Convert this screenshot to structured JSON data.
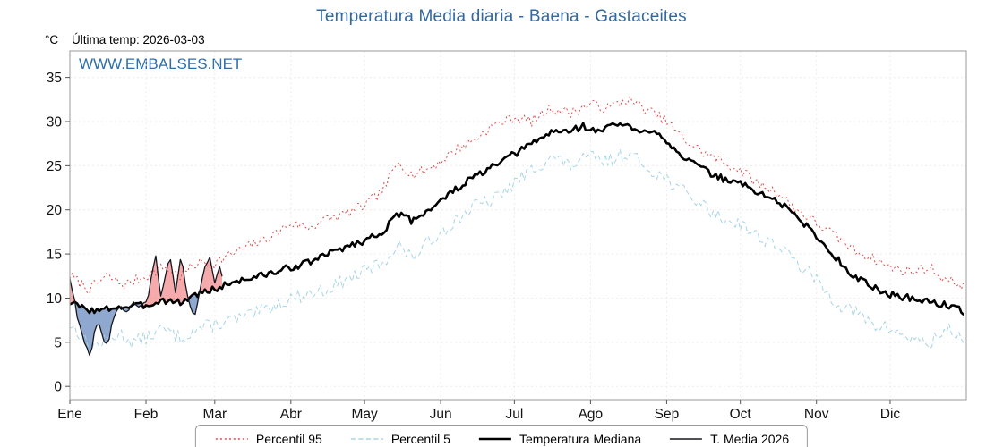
{
  "header": {
    "last_temp_label": "Última temp: 2026-03-03",
    "watermark": "WWW.EMBALSES.NET"
  },
  "colors": {
    "title": "#33699e",
    "watermark": "#2d6fad",
    "axis": "#a9a9a9",
    "grid": "#ececec",
    "tick_text": "#111111"
  },
  "chart_data": {
    "type": "line",
    "title": "Temperatura Media diaria - Baena - Gastaceites",
    "ylabel": "°C",
    "xlabel": "",
    "ylim": [
      0,
      35
    ],
    "yticks": [
      0,
      5,
      10,
      15,
      20,
      25,
      30,
      35
    ],
    "x_categories": [
      "Ene",
      "Feb",
      "Mar",
      "Abr",
      "May",
      "Jun",
      "Jul",
      "Ago",
      "Sep",
      "Oct",
      "Nov",
      "Dic"
    ],
    "month_start_days": [
      0,
      31,
      59,
      90,
      120,
      151,
      181,
      212,
      243,
      273,
      304,
      334
    ],
    "grid": true,
    "legend_position": "bottom",
    "fill_above": "rgba(238,115,115,0.6)",
    "fill_below": "rgba(82,122,182,0.65)",
    "series": [
      {
        "name": "Percentil 95",
        "color": "#e04b4b",
        "dash": "2 3",
        "width": 1,
        "noise": 0.6,
        "seed": 7,
        "points": [
          [
            0,
            12.5
          ],
          [
            8,
            11
          ],
          [
            15,
            12.5
          ],
          [
            22,
            11.5
          ],
          [
            31,
            12.5
          ],
          [
            38,
            13.5
          ],
          [
            45,
            12.5
          ],
          [
            52,
            14
          ],
          [
            59,
            14
          ],
          [
            66,
            15
          ],
          [
            74,
            16
          ],
          [
            82,
            17
          ],
          [
            90,
            18.5
          ],
          [
            97,
            18
          ],
          [
            105,
            19
          ],
          [
            112,
            19.5
          ],
          [
            120,
            20.5
          ],
          [
            127,
            22
          ],
          [
            134,
            25.5
          ],
          [
            139,
            24
          ],
          [
            145,
            24.5
          ],
          [
            151,
            25.5
          ],
          [
            158,
            27
          ],
          [
            165,
            28
          ],
          [
            172,
            29.5
          ],
          [
            181,
            30.5
          ],
          [
            188,
            30
          ],
          [
            196,
            31.5
          ],
          [
            204,
            31
          ],
          [
            212,
            32
          ],
          [
            219,
            31.5
          ],
          [
            227,
            32.5
          ],
          [
            234,
            31.5
          ],
          [
            243,
            30
          ],
          [
            250,
            28
          ],
          [
            258,
            26.5
          ],
          [
            265,
            25.5
          ],
          [
            273,
            24.5
          ],
          [
            280,
            23
          ],
          [
            288,
            22
          ],
          [
            296,
            20
          ],
          [
            304,
            18.5
          ],
          [
            312,
            17
          ],
          [
            319,
            15.5
          ],
          [
            327,
            14.5
          ],
          [
            334,
            13.5
          ],
          [
            342,
            13
          ],
          [
            350,
            13.5
          ],
          [
            357,
            12
          ],
          [
            364,
            11.5
          ]
        ]
      },
      {
        "name": "Percentil 5",
        "color": "#a5d5e6",
        "dash": "5 3.5",
        "width": 1,
        "noise": 0.8,
        "seed": 13,
        "points": [
          [
            0,
            7
          ],
          [
            4,
            6
          ],
          [
            8,
            4.5
          ],
          [
            14,
            5
          ],
          [
            20,
            6
          ],
          [
            26,
            5
          ],
          [
            31,
            5.5
          ],
          [
            38,
            6.5
          ],
          [
            45,
            5.5
          ],
          [
            52,
            6.5
          ],
          [
            59,
            7
          ],
          [
            66,
            7.5
          ],
          [
            74,
            8
          ],
          [
            82,
            9
          ],
          [
            90,
            10
          ],
          [
            97,
            10.5
          ],
          [
            105,
            11
          ],
          [
            112,
            12
          ],
          [
            120,
            13
          ],
          [
            127,
            14
          ],
          [
            134,
            16
          ],
          [
            139,
            14.5
          ],
          [
            145,
            16
          ],
          [
            151,
            17.5
          ],
          [
            158,
            19
          ],
          [
            165,
            20.5
          ],
          [
            172,
            21
          ],
          [
            181,
            23
          ],
          [
            188,
            24.5
          ],
          [
            196,
            26
          ],
          [
            204,
            25
          ],
          [
            212,
            26
          ],
          [
            219,
            25.5
          ],
          [
            227,
            26.5
          ],
          [
            234,
            25
          ],
          [
            243,
            23.5
          ],
          [
            250,
            22
          ],
          [
            258,
            20.5
          ],
          [
            265,
            19
          ],
          [
            273,
            18.5
          ],
          [
            280,
            17
          ],
          [
            288,
            16
          ],
          [
            296,
            14
          ],
          [
            304,
            12
          ],
          [
            312,
            9.5
          ],
          [
            319,
            8.5
          ],
          [
            327,
            7
          ],
          [
            334,
            6.5
          ],
          [
            342,
            5.5
          ],
          [
            350,
            4.8
          ],
          [
            357,
            6.5
          ],
          [
            364,
            5.5
          ]
        ]
      },
      {
        "name": "Temperatura Mediana",
        "color": "#000000",
        "dash": "",
        "width": 2.6,
        "noise": 0.4,
        "seed": 3,
        "points": [
          [
            0,
            9.5
          ],
          [
            6,
            8.8
          ],
          [
            12,
            8.5
          ],
          [
            18,
            9
          ],
          [
            24,
            9
          ],
          [
            31,
            9.2
          ],
          [
            38,
            9.8
          ],
          [
            45,
            9.5
          ],
          [
            52,
            10.5
          ],
          [
            59,
            11
          ],
          [
            66,
            11.8
          ],
          [
            74,
            12.3
          ],
          [
            82,
            12.8
          ],
          [
            90,
            13.5
          ],
          [
            97,
            14
          ],
          [
            105,
            15
          ],
          [
            112,
            15.8
          ],
          [
            120,
            16.5
          ],
          [
            127,
            17.5
          ],
          [
            134,
            19.5
          ],
          [
            139,
            18.8
          ],
          [
            145,
            19.8
          ],
          [
            151,
            21
          ],
          [
            158,
            22.5
          ],
          [
            165,
            23.8
          ],
          [
            172,
            24.8
          ],
          [
            181,
            26.3
          ],
          [
            188,
            27.5
          ],
          [
            196,
            28.8
          ],
          [
            204,
            29
          ],
          [
            209,
            29.5
          ],
          [
            215,
            28.8
          ],
          [
            222,
            29.8
          ],
          [
            227,
            29.5
          ],
          [
            232,
            28.6
          ],
          [
            238,
            29.2
          ],
          [
            243,
            27.8
          ],
          [
            250,
            26
          ],
          [
            258,
            24.5
          ],
          [
            265,
            23.6
          ],
          [
            273,
            23
          ],
          [
            280,
            22
          ],
          [
            288,
            21
          ],
          [
            296,
            19.3
          ],
          [
            304,
            17
          ],
          [
            312,
            14.5
          ],
          [
            319,
            12.6
          ],
          [
            327,
            11.2
          ],
          [
            334,
            10.4
          ],
          [
            342,
            10
          ],
          [
            350,
            9.6
          ],
          [
            357,
            9.2
          ],
          [
            364,
            8.5
          ]
        ]
      },
      {
        "name": "T. Media 2026",
        "color": "#16161f",
        "dash": "",
        "width": 1.3,
        "noise": 0.2,
        "seed": 9,
        "points": [
          [
            0,
            12.3
          ],
          [
            1,
            11
          ],
          [
            2,
            9.5
          ],
          [
            3,
            8
          ],
          [
            4,
            7
          ],
          [
            5,
            6
          ],
          [
            6,
            5
          ],
          [
            7,
            4.2
          ],
          [
            8,
            3.7
          ],
          [
            9,
            4.5
          ],
          [
            10,
            6
          ],
          [
            11,
            6.8
          ],
          [
            12,
            7
          ],
          [
            13,
            6
          ],
          [
            14,
            5.2
          ],
          [
            15,
            4.8
          ],
          [
            16,
            5.5
          ],
          [
            17,
            7
          ],
          [
            18,
            8
          ],
          [
            19,
            8.5
          ],
          [
            20,
            8.8
          ],
          [
            21,
            9
          ],
          [
            22,
            8.6
          ],
          [
            23,
            8.3
          ],
          [
            24,
            8.8
          ],
          [
            25,
            9.3
          ],
          [
            26,
            9.6
          ],
          [
            27,
            9.2
          ],
          [
            28,
            8.9
          ],
          [
            29,
            9.1
          ],
          [
            30,
            9.4
          ],
          [
            31,
            9.6
          ],
          [
            32,
            10.5
          ],
          [
            33,
            12
          ],
          [
            34,
            13.5
          ],
          [
            35,
            14.6
          ],
          [
            36,
            12.5
          ],
          [
            37,
            10.2
          ],
          [
            38,
            11.5
          ],
          [
            39,
            12.5
          ],
          [
            40,
            13.8
          ],
          [
            41,
            14.5
          ],
          [
            42,
            12.5
          ],
          [
            43,
            10.5
          ],
          [
            44,
            12.5
          ],
          [
            45,
            14.5
          ],
          [
            46,
            13.5
          ],
          [
            47,
            11.8
          ],
          [
            48,
            10
          ],
          [
            49,
            9
          ],
          [
            50,
            8.2
          ],
          [
            51,
            8
          ],
          [
            52,
            9.5
          ],
          [
            53,
            11
          ],
          [
            54,
            12.5
          ],
          [
            55,
            13.6
          ],
          [
            56,
            14.2
          ],
          [
            57,
            14.6
          ],
          [
            58,
            13
          ],
          [
            59,
            11.8
          ],
          [
            60,
            12.5
          ],
          [
            61,
            13.4
          ],
          [
            62,
            12.6
          ]
        ]
      }
    ]
  }
}
